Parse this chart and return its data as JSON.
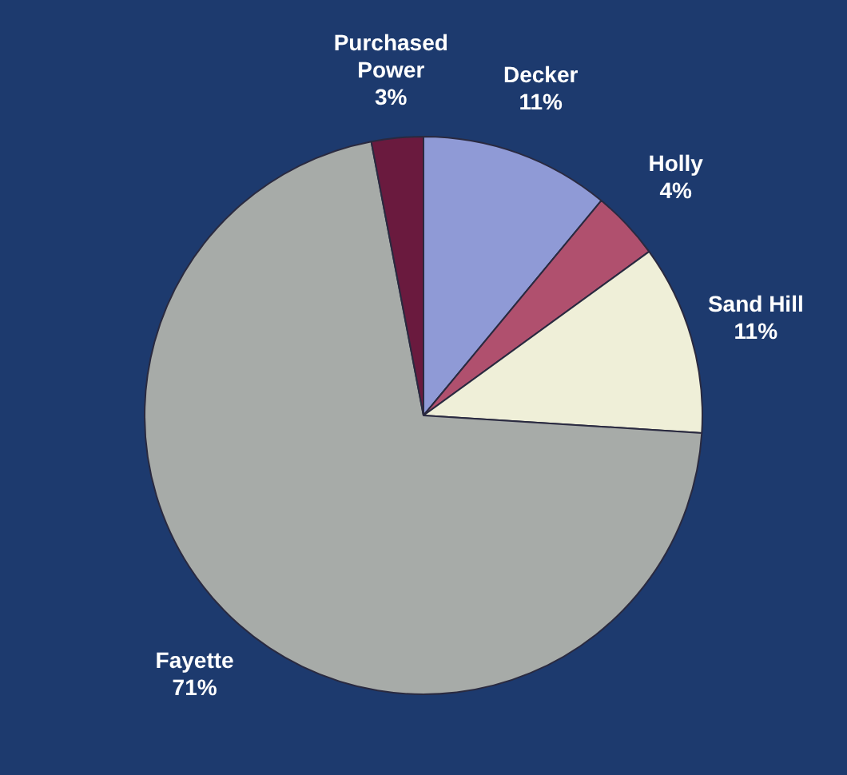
{
  "chart_data": {
    "type": "pie",
    "categories": [
      "Decker",
      "Holly",
      "Sand Hill",
      "Fayette",
      "Purchased Power"
    ],
    "values": [
      11,
      4,
      11,
      71,
      3
    ],
    "colors": [
      "#8f9ad6",
      "#b0506e",
      "#efefd8",
      "#a7aba8",
      "#6a1a3e"
    ],
    "value_labels": [
      "11%",
      "4%",
      "11%",
      "71%",
      "3%"
    ],
    "legend": false
  }
}
